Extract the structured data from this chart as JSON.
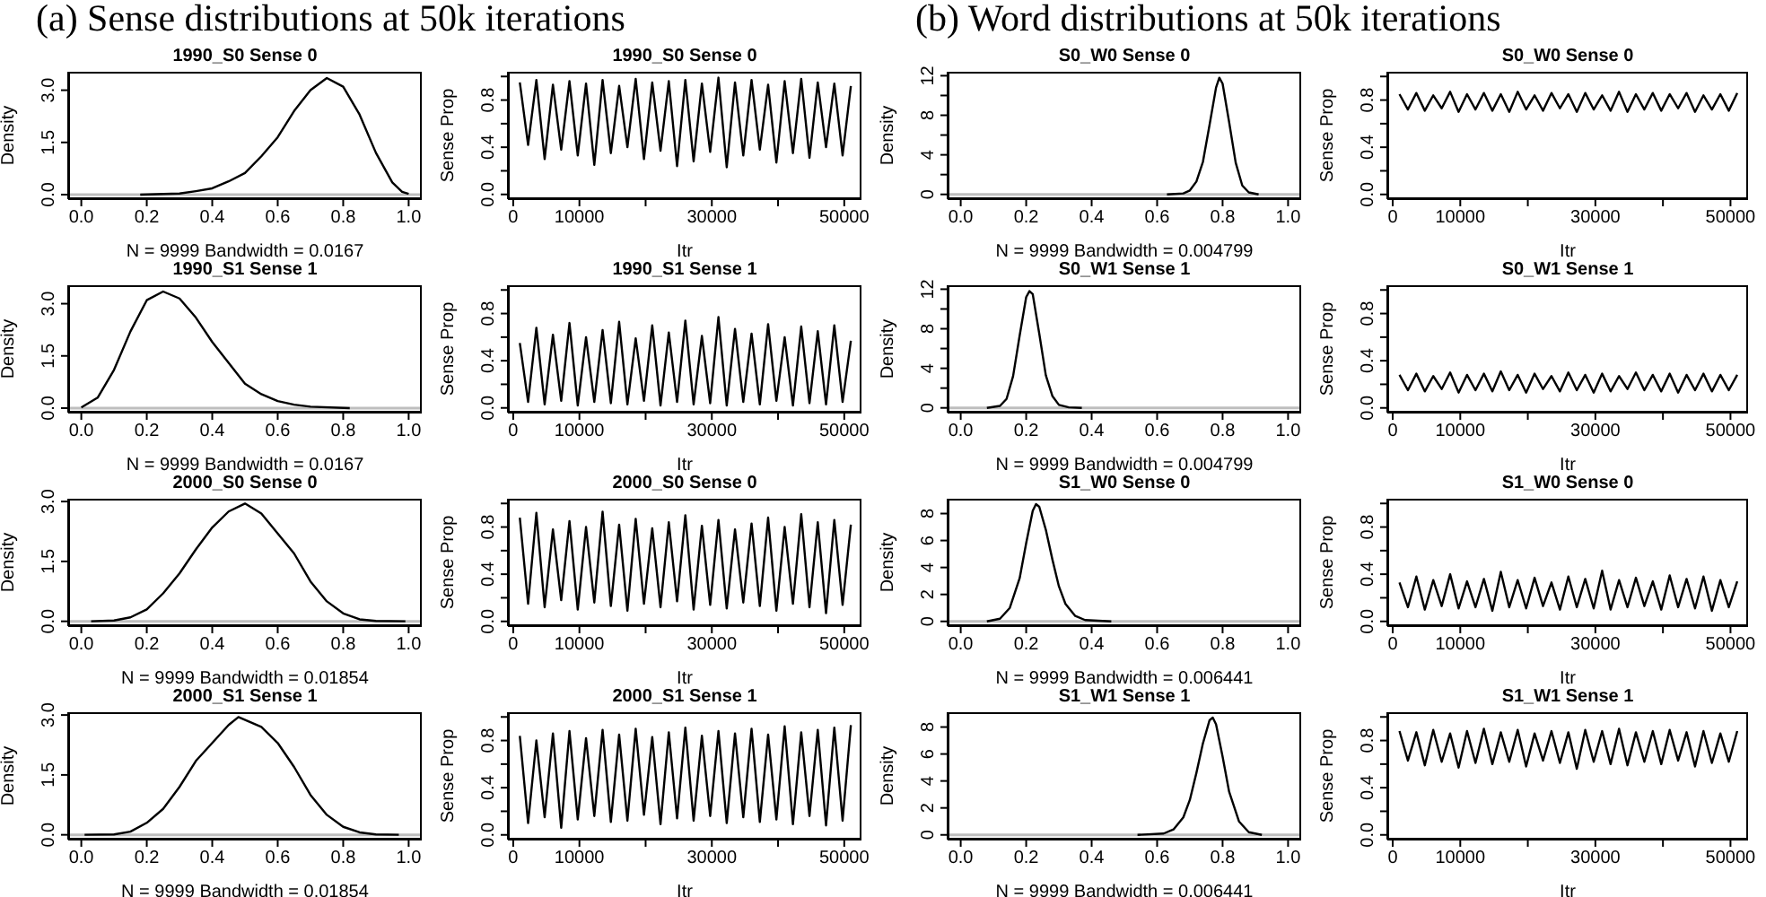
{
  "chart_data": [
    {
      "type": "line",
      "title": "1990_S0 Sense 0",
      "xlabel": "N = 9999   Bandwidth = 0.0167",
      "ylabel": "Density",
      "annotations": [
        "(a) Sense distributions at 50k iterations"
      ],
      "x": [
        0.18,
        0.3,
        0.35,
        0.4,
        0.45,
        0.5,
        0.55,
        0.6,
        0.65,
        0.7,
        0.75,
        0.8,
        0.85,
        0.9,
        0.95,
        0.98,
        1.0
      ],
      "series": [
        {
          "color": "#000000",
          "values": [
            0,
            0.03,
            0.1,
            0.18,
            0.38,
            0.62,
            1.1,
            1.65,
            2.4,
            3.0,
            3.35,
            3.1,
            2.3,
            1.2,
            0.35,
            0.08,
            0.02
          ]
        }
      ],
      "xlim": [
        -0.04,
        1.04
      ],
      "ylim": [
        -0.13,
        3.53
      ],
      "xticks": [
        {
          "value": 0,
          "label": "0.0"
        },
        0.2,
        0.4,
        0.6,
        0.8,
        {
          "value": 1,
          "label": "1.0"
        }
      ],
      "yticks": [
        {
          "value": 0,
          "label": "0.0"
        },
        1.5,
        {
          "value": 3,
          "label": "3.0"
        }
      ],
      "ref_lines": [
        {
          "axis": "y",
          "value": 0,
          "color": "#bebebe"
        }
      ]
    },
    {
      "type": "line",
      "title": "1990_S0 Sense 0",
      "xlabel": "Itr",
      "ylabel": "Sense Prop",
      "x": [
        1000,
        2250,
        3500,
        4750,
        6000,
        7250,
        8500,
        9750,
        11000,
        12250,
        13500,
        14750,
        16000,
        17250,
        18500,
        19750,
        21000,
        22250,
        23500,
        24750,
        26000,
        27250,
        28500,
        29750,
        31000,
        32250,
        33500,
        34750,
        36000,
        37250,
        38500,
        39750,
        41000,
        42250,
        43500,
        44750,
        46000,
        47250,
        48500,
        49750,
        51000
      ],
      "series": [
        {
          "color": "#000000",
          "values": [
            0.95,
            0.42,
            0.97,
            0.3,
            0.93,
            0.38,
            0.96,
            0.33,
            0.94,
            0.25,
            0.97,
            0.35,
            0.92,
            0.4,
            0.98,
            0.3,
            0.95,
            0.37,
            0.96,
            0.24,
            0.97,
            0.28,
            0.94,
            0.36,
            0.99,
            0.23,
            0.95,
            0.33,
            0.97,
            0.38,
            0.93,
            0.27,
            0.96,
            0.35,
            0.98,
            0.31,
            0.95,
            0.4,
            0.94,
            0.33,
            0.92
          ]
        }
      ],
      "xlim": [
        -800,
        52600
      ],
      "ylim": [
        -0.04,
        1.04
      ],
      "xticks": [
        0,
        10000,
        {
          "value": 20000,
          "label": null
        },
        30000,
        {
          "value": 40000,
          "label": null
        },
        50000
      ],
      "yticks": [
        {
          "value": 0,
          "label": "0.0"
        },
        {
          "value": 0.2,
          "label": null
        },
        0.4,
        {
          "value": 0.6,
          "label": null
        },
        0.8,
        {
          "value": 1,
          "label": null
        }
      ]
    },
    {
      "type": "line",
      "title": "S0_W0 Sense 0",
      "xlabel": "N = 9999   Bandwidth = 0.004799",
      "ylabel": "Density",
      "annotations": [
        "(b) Word distributions at 50k iterations"
      ],
      "x": [
        0.63,
        0.68,
        0.7,
        0.72,
        0.74,
        0.76,
        0.78,
        0.79,
        0.8,
        0.82,
        0.84,
        0.86,
        0.88,
        0.91
      ],
      "series": [
        {
          "color": "#000000",
          "values": [
            0,
            0.1,
            0.4,
            1.3,
            3.3,
            7,
            10.8,
            11.8,
            11.2,
            7.3,
            3.2,
            0.9,
            0.2,
            0
          ]
        }
      ],
      "xlim": [
        -0.04,
        1.04
      ],
      "ylim": [
        -0.48,
        12.4
      ],
      "xticks": [
        {
          "value": 0,
          "label": "0.0"
        },
        0.2,
        0.4,
        0.6,
        0.8,
        {
          "value": 1,
          "label": "1.0"
        }
      ],
      "yticks": [
        0,
        {
          "value": 2,
          "label": null
        },
        4,
        {
          "value": 6,
          "label": null
        },
        8,
        {
          "value": 10,
          "label": null
        },
        12
      ],
      "ref_lines": [
        {
          "axis": "y",
          "value": 0,
          "color": "#bebebe"
        }
      ]
    },
    {
      "type": "line",
      "title": "S0_W0 Sense 0",
      "xlabel": "Itr",
      "ylabel": "Sense Prop",
      "x": [
        1000,
        2250,
        3500,
        4750,
        6000,
        7250,
        8500,
        9750,
        11000,
        12250,
        13500,
        14750,
        16000,
        17250,
        18500,
        19750,
        21000,
        22250,
        23500,
        24750,
        26000,
        27250,
        28500,
        29750,
        31000,
        32250,
        33500,
        34750,
        36000,
        37250,
        38500,
        39750,
        41000,
        42250,
        43500,
        44750,
        46000,
        47250,
        48500,
        49750,
        51000
      ],
      "series": [
        {
          "color": "#000000",
          "values": [
            0.85,
            0.72,
            0.86,
            0.71,
            0.84,
            0.73,
            0.87,
            0.7,
            0.85,
            0.72,
            0.86,
            0.71,
            0.85,
            0.7,
            0.87,
            0.72,
            0.84,
            0.71,
            0.86,
            0.73,
            0.85,
            0.7,
            0.86,
            0.72,
            0.84,
            0.71,
            0.87,
            0.7,
            0.85,
            0.72,
            0.86,
            0.71,
            0.85,
            0.73,
            0.86,
            0.7,
            0.84,
            0.72,
            0.85,
            0.71,
            0.86
          ]
        }
      ],
      "xlim": [
        -800,
        52600
      ],
      "ylim": [
        -0.04,
        1.04
      ],
      "xticks": [
        0,
        10000,
        {
          "value": 20000,
          "label": null
        },
        30000,
        {
          "value": 40000,
          "label": null
        },
        50000
      ],
      "yticks": [
        {
          "value": 0,
          "label": "0.0"
        },
        {
          "value": 0.2,
          "label": null
        },
        0.4,
        {
          "value": 0.6,
          "label": null
        },
        0.8,
        {
          "value": 1,
          "label": null
        }
      ]
    },
    {
      "type": "line",
      "title": "1990_S1 Sense 1",
      "xlabel": "N = 9999   Bandwidth = 0.0167",
      "ylabel": "Density",
      "x": [
        0,
        0.05,
        0.1,
        0.15,
        0.2,
        0.25,
        0.3,
        0.35,
        0.4,
        0.45,
        0.5,
        0.55,
        0.6,
        0.65,
        0.7,
        0.82
      ],
      "series": [
        {
          "color": "#000000",
          "values": [
            0.02,
            0.3,
            1.1,
            2.2,
            3.1,
            3.35,
            3.15,
            2.6,
            1.9,
            1.3,
            0.7,
            0.4,
            0.2,
            0.1,
            0.04,
            0
          ]
        }
      ],
      "xlim": [
        -0.04,
        1.04
      ],
      "ylim": [
        -0.13,
        3.53
      ],
      "xticks": [
        {
          "value": 0,
          "label": "0.0"
        },
        0.2,
        0.4,
        0.6,
        0.8,
        {
          "value": 1,
          "label": "1.0"
        }
      ],
      "yticks": [
        {
          "value": 0,
          "label": "0.0"
        },
        1.5,
        {
          "value": 3,
          "label": "3.0"
        }
      ],
      "ref_lines": [
        {
          "axis": "y",
          "value": 0,
          "color": "#bebebe"
        }
      ]
    },
    {
      "type": "line",
      "title": "1990_S1 Sense 1",
      "xlabel": "Itr",
      "ylabel": "Sense Prop",
      "x": [
        1000,
        2250,
        3500,
        4750,
        6000,
        7250,
        8500,
        9750,
        11000,
        12250,
        13500,
        14750,
        16000,
        17250,
        18500,
        19750,
        21000,
        22250,
        23500,
        24750,
        26000,
        27250,
        28500,
        29750,
        31000,
        32250,
        33500,
        34750,
        36000,
        37250,
        38500,
        39750,
        41000,
        42250,
        43500,
        44750,
        46000,
        47250,
        48500,
        49750,
        51000
      ],
      "series": [
        {
          "color": "#000000",
          "values": [
            0.55,
            0.05,
            0.68,
            0.03,
            0.62,
            0.06,
            0.72,
            0.02,
            0.6,
            0.05,
            0.66,
            0.04,
            0.73,
            0.03,
            0.59,
            0.06,
            0.7,
            0.02,
            0.64,
            0.05,
            0.74,
            0.03,
            0.61,
            0.04,
            0.77,
            0.02,
            0.67,
            0.05,
            0.63,
            0.03,
            0.71,
            0.06,
            0.6,
            0.02,
            0.69,
            0.04,
            0.65,
            0.03,
            0.7,
            0.05,
            0.57
          ]
        }
      ],
      "xlim": [
        -800,
        52600
      ],
      "ylim": [
        -0.04,
        1.04
      ],
      "xticks": [
        0,
        10000,
        {
          "value": 20000,
          "label": null
        },
        30000,
        {
          "value": 40000,
          "label": null
        },
        50000
      ],
      "yticks": [
        {
          "value": 0,
          "label": "0.0"
        },
        {
          "value": 0.2,
          "label": null
        },
        0.4,
        {
          "value": 0.6,
          "label": null
        },
        0.8,
        {
          "value": 1,
          "label": null
        }
      ]
    },
    {
      "type": "line",
      "title": "S0_W1 Sense 1",
      "xlabel": "N = 9999   Bandwidth = 0.004799",
      "ylabel": "Density",
      "x": [
        0.08,
        0.12,
        0.14,
        0.16,
        0.18,
        0.2,
        0.21,
        0.22,
        0.24,
        0.26,
        0.28,
        0.3,
        0.33,
        0.37
      ],
      "series": [
        {
          "color": "#000000",
          "values": [
            0,
            0.2,
            0.9,
            3.2,
            7.3,
            11.2,
            11.8,
            11.5,
            7.5,
            3.3,
            1.2,
            0.3,
            0.05,
            0
          ]
        }
      ],
      "xlim": [
        -0.04,
        1.04
      ],
      "ylim": [
        -0.48,
        12.4
      ],
      "xticks": [
        {
          "value": 0,
          "label": "0.0"
        },
        0.2,
        0.4,
        0.6,
        0.8,
        {
          "value": 1,
          "label": "1.0"
        }
      ],
      "yticks": [
        0,
        {
          "value": 2,
          "label": null
        },
        4,
        {
          "value": 6,
          "label": null
        },
        8,
        {
          "value": 10,
          "label": null
        },
        12
      ],
      "ref_lines": [
        {
          "axis": "y",
          "value": 0,
          "color": "#bebebe"
        }
      ]
    },
    {
      "type": "line",
      "title": "S0_W1 Sense 1",
      "xlabel": "Itr",
      "ylabel": "Sense Prop",
      "x": [
        1000,
        2250,
        3500,
        4750,
        6000,
        7250,
        8500,
        9750,
        11000,
        12250,
        13500,
        14750,
        16000,
        17250,
        18500,
        19750,
        21000,
        22250,
        23500,
        24750,
        26000,
        27250,
        28500,
        29750,
        31000,
        32250,
        33500,
        34750,
        36000,
        37250,
        38500,
        39750,
        41000,
        42250,
        43500,
        44750,
        46000,
        47250,
        48500,
        49750,
        51000
      ],
      "series": [
        {
          "color": "#000000",
          "values": [
            0.28,
            0.15,
            0.29,
            0.14,
            0.27,
            0.16,
            0.3,
            0.13,
            0.28,
            0.15,
            0.29,
            0.14,
            0.31,
            0.15,
            0.28,
            0.13,
            0.29,
            0.16,
            0.27,
            0.14,
            0.3,
            0.15,
            0.28,
            0.13,
            0.29,
            0.14,
            0.27,
            0.16,
            0.3,
            0.15,
            0.28,
            0.14,
            0.29,
            0.13,
            0.28,
            0.15,
            0.29,
            0.14,
            0.28,
            0.15,
            0.28
          ]
        }
      ],
      "xlim": [
        -800,
        52600
      ],
      "ylim": [
        -0.04,
        1.04
      ],
      "xticks": [
        0,
        10000,
        {
          "value": 20000,
          "label": null
        },
        30000,
        {
          "value": 40000,
          "label": null
        },
        50000
      ],
      "yticks": [
        {
          "value": 0,
          "label": "0.0"
        },
        {
          "value": 0.2,
          "label": null
        },
        0.4,
        {
          "value": 0.6,
          "label": null
        },
        0.8,
        {
          "value": 1,
          "label": null
        }
      ]
    },
    {
      "type": "line",
      "title": "2000_S0 Sense 0",
      "xlabel": "N = 9999   Bandwidth = 0.01854",
      "ylabel": "Density",
      "x": [
        0.03,
        0.1,
        0.15,
        0.2,
        0.25,
        0.3,
        0.35,
        0.4,
        0.45,
        0.5,
        0.55,
        0.6,
        0.65,
        0.7,
        0.75,
        0.8,
        0.85,
        0.9,
        0.99
      ],
      "series": [
        {
          "color": "#000000",
          "values": [
            0,
            0.02,
            0.1,
            0.3,
            0.7,
            1.2,
            1.8,
            2.35,
            2.75,
            2.95,
            2.7,
            2.2,
            1.7,
            1.0,
            0.5,
            0.2,
            0.05,
            0.01,
            0
          ]
        }
      ],
      "xlim": [
        -0.04,
        1.04
      ],
      "ylim": [
        -0.12,
        3.07
      ],
      "xticks": [
        {
          "value": 0,
          "label": "0.0"
        },
        0.2,
        0.4,
        0.6,
        0.8,
        {
          "value": 1,
          "label": "1.0"
        }
      ],
      "yticks": [
        {
          "value": 0,
          "label": "0.0"
        },
        1.5,
        {
          "value": 3,
          "label": "3.0"
        }
      ],
      "ref_lines": [
        {
          "axis": "y",
          "value": 0,
          "color": "#bebebe"
        }
      ]
    },
    {
      "type": "line",
      "title": "2000_S0 Sense 0",
      "xlabel": "Itr",
      "ylabel": "Sense Prop",
      "x": [
        1000,
        2250,
        3500,
        4750,
        6000,
        7250,
        8500,
        9750,
        11000,
        12250,
        13500,
        14750,
        16000,
        17250,
        18500,
        19750,
        21000,
        22250,
        23500,
        24750,
        26000,
        27250,
        28500,
        29750,
        31000,
        32250,
        33500,
        34750,
        36000,
        37250,
        38500,
        39750,
        41000,
        42250,
        43500,
        44750,
        46000,
        47250,
        48500,
        49750,
        51000
      ],
      "series": [
        {
          "color": "#000000",
          "values": [
            0.88,
            0.15,
            0.92,
            0.12,
            0.78,
            0.18,
            0.85,
            0.1,
            0.8,
            0.16,
            0.93,
            0.13,
            0.82,
            0.09,
            0.87,
            0.15,
            0.79,
            0.12,
            0.84,
            0.17,
            0.9,
            0.1,
            0.81,
            0.14,
            0.86,
            0.11,
            0.78,
            0.16,
            0.83,
            0.13,
            0.88,
            0.09,
            0.8,
            0.15,
            0.91,
            0.12,
            0.84,
            0.07,
            0.86,
            0.14,
            0.82
          ]
        }
      ],
      "xlim": [
        -800,
        52600
      ],
      "ylim": [
        -0.04,
        1.04
      ],
      "xticks": [
        0,
        10000,
        {
          "value": 20000,
          "label": null
        },
        30000,
        {
          "value": 40000,
          "label": null
        },
        50000
      ],
      "yticks": [
        {
          "value": 0,
          "label": "0.0"
        },
        {
          "value": 0.2,
          "label": null
        },
        0.4,
        {
          "value": 0.6,
          "label": null
        },
        0.8,
        {
          "value": 1,
          "label": null
        }
      ]
    },
    {
      "type": "line",
      "title": "S1_W0 Sense 0",
      "xlabel": "N = 9999   Bandwidth = 0.006441",
      "ylabel": "Density",
      "x": [
        0.08,
        0.12,
        0.15,
        0.18,
        0.2,
        0.22,
        0.23,
        0.24,
        0.26,
        0.28,
        0.3,
        0.32,
        0.35,
        0.38,
        0.46
      ],
      "series": [
        {
          "color": "#000000",
          "values": [
            0,
            0.2,
            1.0,
            3.2,
            5.8,
            8.2,
            8.7,
            8.5,
            6.8,
            4.6,
            2.6,
            1.3,
            0.4,
            0.1,
            0
          ]
        }
      ],
      "xlim": [
        -0.04,
        1.04
      ],
      "ylim": [
        -0.35,
        9.1
      ],
      "xticks": [
        {
          "value": 0,
          "label": "0.0"
        },
        0.2,
        0.4,
        0.6,
        0.8,
        {
          "value": 1,
          "label": "1.0"
        }
      ],
      "yticks": [
        0,
        2,
        4,
        6,
        8
      ],
      "ref_lines": [
        {
          "axis": "y",
          "value": 0,
          "color": "#bebebe"
        }
      ]
    },
    {
      "type": "line",
      "title": "S1_W0 Sense 0",
      "xlabel": "Itr",
      "ylabel": "Sense Prop",
      "x": [
        1000,
        2250,
        3500,
        4750,
        6000,
        7250,
        8500,
        9750,
        11000,
        12250,
        13500,
        14750,
        16000,
        17250,
        18500,
        19750,
        21000,
        22250,
        23500,
        24750,
        26000,
        27250,
        28500,
        29750,
        31000,
        32250,
        33500,
        34750,
        36000,
        37250,
        38500,
        39750,
        41000,
        42250,
        43500,
        44750,
        46000,
        47250,
        48500,
        49750,
        51000
      ],
      "series": [
        {
          "color": "#000000",
          "values": [
            0.33,
            0.12,
            0.38,
            0.1,
            0.35,
            0.13,
            0.4,
            0.11,
            0.34,
            0.12,
            0.36,
            0.09,
            0.42,
            0.12,
            0.35,
            0.11,
            0.37,
            0.13,
            0.33,
            0.1,
            0.38,
            0.12,
            0.36,
            0.11,
            0.43,
            0.1,
            0.35,
            0.12,
            0.37,
            0.13,
            0.34,
            0.1,
            0.39,
            0.12,
            0.36,
            0.11,
            0.38,
            0.09,
            0.35,
            0.12,
            0.34
          ]
        }
      ],
      "xlim": [
        -800,
        52600
      ],
      "ylim": [
        -0.04,
        1.04
      ],
      "xticks": [
        0,
        10000,
        {
          "value": 20000,
          "label": null
        },
        30000,
        {
          "value": 40000,
          "label": null
        },
        50000
      ],
      "yticks": [
        {
          "value": 0,
          "label": "0.0"
        },
        {
          "value": 0.2,
          "label": null
        },
        0.4,
        {
          "value": 0.6,
          "label": null
        },
        0.8,
        {
          "value": 1,
          "label": null
        }
      ]
    },
    {
      "type": "line",
      "title": "2000_S1 Sense 1",
      "xlabel": "N = 9999   Bandwidth = 0.01854",
      "ylabel": "Density",
      "x": [
        0.01,
        0.1,
        0.15,
        0.2,
        0.25,
        0.3,
        0.35,
        0.4,
        0.45,
        0.48,
        0.55,
        0.6,
        0.65,
        0.7,
        0.75,
        0.8,
        0.85,
        0.9,
        0.97
      ],
      "series": [
        {
          "color": "#000000",
          "values": [
            0,
            0.01,
            0.08,
            0.3,
            0.65,
            1.2,
            1.85,
            2.3,
            2.75,
            2.95,
            2.7,
            2.3,
            1.7,
            1.0,
            0.5,
            0.2,
            0.06,
            0.01,
            0
          ]
        }
      ],
      "xlim": [
        -0.04,
        1.04
      ],
      "ylim": [
        -0.12,
        3.07
      ],
      "xticks": [
        {
          "value": 0,
          "label": "0.0"
        },
        0.2,
        0.4,
        0.6,
        0.8,
        {
          "value": 1,
          "label": "1.0"
        }
      ],
      "yticks": [
        {
          "value": 0,
          "label": "0.0"
        },
        1.5,
        {
          "value": 3,
          "label": "3.0"
        }
      ],
      "ref_lines": [
        {
          "axis": "y",
          "value": 0,
          "color": "#bebebe"
        }
      ]
    },
    {
      "type": "line",
      "title": "2000_S1 Sense 1",
      "xlabel": "Itr",
      "ylabel": "Sense Prop",
      "x": [
        1000,
        2250,
        3500,
        4750,
        6000,
        7250,
        8500,
        9750,
        11000,
        12250,
        13500,
        14750,
        16000,
        17250,
        18500,
        19750,
        21000,
        22250,
        23500,
        24750,
        26000,
        27250,
        28500,
        29750,
        31000,
        32250,
        33500,
        34750,
        36000,
        37250,
        38500,
        39750,
        41000,
        42250,
        43500,
        44750,
        46000,
        47250,
        48500,
        49750,
        51000
      ],
      "series": [
        {
          "color": "#000000",
          "values": [
            0.84,
            0.1,
            0.8,
            0.15,
            0.86,
            0.06,
            0.88,
            0.13,
            0.82,
            0.16,
            0.89,
            0.11,
            0.85,
            0.12,
            0.9,
            0.17,
            0.83,
            0.09,
            0.87,
            0.14,
            0.91,
            0.12,
            0.84,
            0.16,
            0.88,
            0.1,
            0.86,
            0.15,
            0.9,
            0.11,
            0.85,
            0.13,
            0.92,
            0.09,
            0.87,
            0.16,
            0.89,
            0.08,
            0.91,
            0.12,
            0.93
          ]
        }
      ],
      "xlim": [
        -800,
        52600
      ],
      "ylim": [
        -0.04,
        1.04
      ],
      "xticks": [
        0,
        10000,
        {
          "value": 20000,
          "label": null
        },
        30000,
        {
          "value": 40000,
          "label": null
        },
        50000
      ],
      "yticks": [
        {
          "value": 0,
          "label": "0.0"
        },
        {
          "value": 0.2,
          "label": null
        },
        0.4,
        {
          "value": 0.6,
          "label": null
        },
        0.8,
        {
          "value": 1,
          "label": null
        }
      ]
    },
    {
      "type": "line",
      "title": "S1_W1 Sense 1",
      "xlabel": "N = 9999   Bandwidth = 0.006441",
      "ylabel": "Density",
      "x": [
        0.54,
        0.62,
        0.65,
        0.68,
        0.7,
        0.72,
        0.74,
        0.76,
        0.77,
        0.78,
        0.8,
        0.82,
        0.85,
        0.88,
        0.92
      ],
      "series": [
        {
          "color": "#000000",
          "values": [
            0,
            0.1,
            0.4,
            1.3,
            2.6,
            4.6,
            6.8,
            8.5,
            8.7,
            8.2,
            5.8,
            3.2,
            1.0,
            0.2,
            0
          ]
        }
      ],
      "xlim": [
        -0.04,
        1.04
      ],
      "ylim": [
        -0.35,
        9.1
      ],
      "xticks": [
        {
          "value": 0,
          "label": "0.0"
        },
        0.2,
        0.4,
        0.6,
        0.8,
        {
          "value": 1,
          "label": "1.0"
        }
      ],
      "yticks": [
        0,
        2,
        4,
        6,
        8
      ],
      "ref_lines": [
        {
          "axis": "y",
          "value": 0,
          "color": "#bebebe"
        }
      ]
    },
    {
      "type": "line",
      "title": "S1_W1 Sense 1",
      "xlabel": "Itr",
      "ylabel": "Sense Prop",
      "x": [
        1000,
        2250,
        3500,
        4750,
        6000,
        7250,
        8500,
        9750,
        11000,
        12250,
        13500,
        14750,
        16000,
        17250,
        18500,
        19750,
        21000,
        22250,
        23500,
        24750,
        26000,
        27250,
        28500,
        29750,
        31000,
        32250,
        33500,
        34750,
        36000,
        37250,
        38500,
        39750,
        41000,
        42250,
        43500,
        44750,
        46000,
        47250,
        48500,
        49750,
        51000
      ],
      "series": [
        {
          "color": "#000000",
          "values": [
            0.88,
            0.63,
            0.87,
            0.59,
            0.89,
            0.62,
            0.86,
            0.57,
            0.88,
            0.61,
            0.9,
            0.6,
            0.87,
            0.62,
            0.89,
            0.58,
            0.86,
            0.63,
            0.88,
            0.61,
            0.87,
            0.56,
            0.89,
            0.62,
            0.88,
            0.6,
            0.9,
            0.59,
            0.87,
            0.62,
            0.88,
            0.6,
            0.89,
            0.63,
            0.87,
            0.58,
            0.88,
            0.61,
            0.86,
            0.62,
            0.88
          ]
        }
      ],
      "xlim": [
        -800,
        52600
      ],
      "ylim": [
        -0.04,
        1.04
      ],
      "xticks": [
        0,
        10000,
        {
          "value": 20000,
          "label": null
        },
        30000,
        {
          "value": 40000,
          "label": null
        },
        50000
      ],
      "yticks": [
        {
          "value": 0,
          "label": "0.0"
        },
        {
          "value": 0.2,
          "label": null
        },
        0.4,
        {
          "value": 0.6,
          "label": null
        },
        0.8,
        {
          "value": 1,
          "label": null
        }
      ]
    }
  ]
}
